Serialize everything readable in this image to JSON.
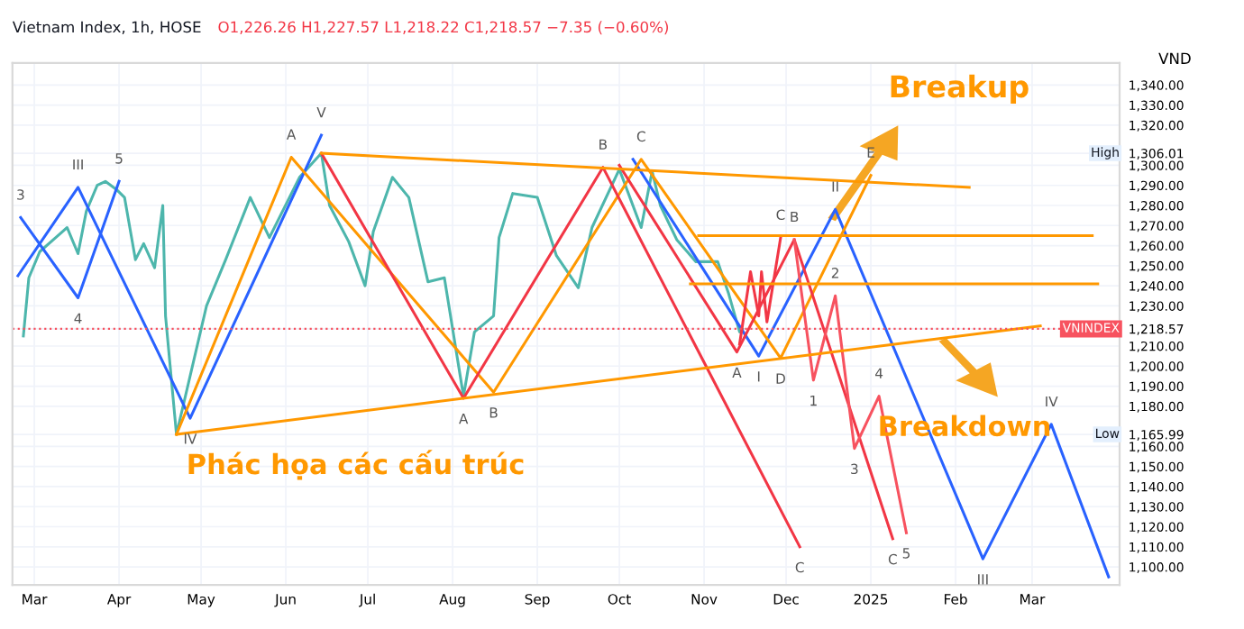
{
  "chart_data": {
    "type": "line",
    "title": "Vietnam Index, 1h, HOSE",
    "subtitle": "O1,226.26 H1,227.57 L1,218.22 C1,218.57 −7.35 (−0.60%)",
    "ylabel": "VND",
    "xlim": [
      "2024-02-22",
      "2025-04-02"
    ],
    "ylim": [
      1091,
      1351
    ],
    "xticks": [
      {
        "value": "2024-03-01",
        "label": "Mar"
      },
      {
        "value": "2024-04-01",
        "label": "Apr"
      },
      {
        "value": "2024-05-01",
        "label": "May"
      },
      {
        "value": "2024-06-01",
        "label": "Jun"
      },
      {
        "value": "2024-07-01",
        "label": "Jul"
      },
      {
        "value": "2024-08-01",
        "label": "Aug"
      },
      {
        "value": "2024-09-01",
        "label": "Sep"
      },
      {
        "value": "2024-10-01",
        "label": "Oct"
      },
      {
        "value": "2024-11-01",
        "label": "Nov"
      },
      {
        "value": "2024-12-01",
        "label": "Dec"
      },
      {
        "value": "2025-01-01",
        "label": "2025"
      },
      {
        "value": "2025-02-01",
        "label": "Feb"
      },
      {
        "value": "2025-03-01",
        "label": "Mar"
      }
    ],
    "yticks": [
      {
        "value": 1100,
        "label": "1,100.00"
      },
      {
        "value": 1110,
        "label": "1,110.00"
      },
      {
        "value": 1120,
        "label": "1,120.00"
      },
      {
        "value": 1130,
        "label": "1,130.00"
      },
      {
        "value": 1140,
        "label": "1,140.00"
      },
      {
        "value": 1150,
        "label": "1,150.00"
      },
      {
        "value": 1160,
        "label": "1,160.00"
      },
      {
        "value": 1165.99,
        "label": "1,165.99"
      },
      {
        "value": 1180,
        "label": "1,180.00"
      },
      {
        "value": 1190,
        "label": "1,190.00"
      },
      {
        "value": 1200,
        "label": "1,200.00"
      },
      {
        "value": 1210,
        "label": "1,210.00"
      },
      {
        "value": 1218.57,
        "label": "1,218.57"
      },
      {
        "value": 1230,
        "label": "1,230.00"
      },
      {
        "value": 1240,
        "label": "1,240.00"
      },
      {
        "value": 1250,
        "label": "1,250.00"
      },
      {
        "value": 1260,
        "label": "1,260.00"
      },
      {
        "value": 1270,
        "label": "1,270.00"
      },
      {
        "value": 1280,
        "label": "1,280.00"
      },
      {
        "value": 1290,
        "label": "1,290.00"
      },
      {
        "value": 1300,
        "label": "1,300.00"
      },
      {
        "value": 1306.01,
        "label": "1,306.01"
      },
      {
        "value": 1320,
        "label": "1,320.00"
      },
      {
        "value": 1330,
        "label": "1,330.00"
      },
      {
        "value": 1340,
        "label": "1,340.00"
      }
    ],
    "grid": true,
    "series": [
      {
        "color": "#4db6ac",
        "x": [
          "2024-02-26",
          "2024-02-28",
          "2024-03-03",
          "2024-03-08",
          "2024-03-13",
          "2024-03-17",
          "2024-03-20",
          "2024-03-24",
          "2024-03-27",
          "2024-03-31",
          "2024-04-03",
          "2024-04-07",
          "2024-04-10",
          "2024-04-14",
          "2024-04-17",
          "2024-04-18",
          "2024-04-22",
          "2024-05-03",
          "2024-05-10",
          "2024-05-19",
          "2024-05-26",
          "2024-06-06",
          "2024-06-14",
          "2024-06-17",
          "2024-06-24",
          "2024-06-30",
          "2024-07-03",
          "2024-07-10",
          "2024-07-16",
          "2024-07-23",
          "2024-07-29",
          "2024-08-05",
          "2024-08-09",
          "2024-08-16",
          "2024-08-18",
          "2024-08-23",
          "2024-09-01",
          "2024-09-08",
          "2024-09-16",
          "2024-09-21",
          "2024-10-01",
          "2024-10-09",
          "2024-10-13",
          "2024-10-16",
          "2024-10-22",
          "2024-10-29",
          "2024-11-06",
          "2024-11-10",
          "2024-11-14",
          "2024-11-15"
        ],
        "values": [
          1215,
          1244,
          1257,
          1263,
          1269,
          1256,
          1277,
          1290,
          1292,
          1288,
          1284,
          1253,
          1261,
          1249,
          1280,
          1225,
          1166,
          1230,
          1253,
          1284,
          1264,
          1294,
          1306,
          1280,
          1262,
          1240,
          1267,
          1294,
          1284,
          1242,
          1244,
          1185,
          1217,
          1225,
          1264,
          1286,
          1284,
          1255,
          1239,
          1269,
          1298,
          1269,
          1297,
          1280,
          1263,
          1252,
          1252,
          1236,
          1217,
          1218.57
        ]
      },
      {
        "color": "#2962ff",
        "x": [
          "2024-02-24",
          "2024-03-17",
          "2024-04-27",
          "2024-06-14"
        ],
        "values": [
          1245,
          1289,
          1174,
          1315
        ]
      },
      {
        "color": "#2962ff",
        "x": [
          "2024-02-25",
          "2024-03-17",
          "2024-04-01"
        ],
        "values": [
          1274,
          1234,
          1292
        ]
      },
      {
        "color": "#2962ff",
        "x": [
          "2024-10-06",
          "2024-11-21",
          "2024-12-19",
          "2025-02-11",
          "2025-03-08",
          "2025-03-29"
        ],
        "values": [
          1303,
          1205,
          1278,
          1104,
          1171,
          1095
        ]
      },
      {
        "color": "#ff9800",
        "x": [
          "2024-04-22",
          "2024-06-03",
          "2024-08-16",
          "2024-10-09",
          "2024-11-29",
          "2025-01-01"
        ],
        "values": [
          1166,
          1304,
          1187,
          1303,
          1204,
          1295
        ]
      },
      {
        "color": "#f23645",
        "x": [
          "2024-06-14",
          "2024-08-05",
          "2024-09-25",
          "2024-12-06"
        ],
        "values": [
          1306,
          1184,
          1299,
          1110
        ]
      },
      {
        "color": "#f23645",
        "x": [
          "2024-10-01",
          "2024-11-13",
          "2024-12-04",
          "2025-01-09"
        ],
        "values": [
          1300,
          1207,
          1263,
          1114
        ]
      },
      {
        "color": "#f23645",
        "x": [
          "2024-11-14",
          "2024-11-18",
          "2024-11-21",
          "2024-11-22",
          "2024-11-24",
          "2024-11-29"
        ],
        "values": [
          1211,
          1247,
          1225,
          1247,
          1222,
          1264
        ]
      },
      {
        "color": "#f7525f",
        "x": [
          "2024-12-04",
          "2024-12-11",
          "2024-12-19",
          "2024-12-26",
          "2025-01-04",
          "2025-01-14"
        ],
        "values": [
          1263,
          1193,
          1235,
          1159,
          1185,
          1117
        ]
      },
      {
        "color": "#ff9800",
        "x": [
          "2024-06-14",
          "2025-02-06"
        ],
        "values": [
          1306,
          1289
        ]
      },
      {
        "color": "#ff9800",
        "x": [
          "2024-04-22",
          "2025-03-04"
        ],
        "values": [
          1166,
          1220
        ]
      },
      {
        "color": "#ff9800",
        "x": [
          "2024-10-30",
          "2025-03-23"
        ],
        "values": [
          1265,
          1265
        ]
      },
      {
        "color": "#ff9800",
        "x": [
          "2024-10-27",
          "2025-03-25"
        ],
        "values": [
          1241,
          1241
        ]
      }
    ],
    "ref_lines": [
      {
        "axis": "y",
        "value": 1218.57,
        "label": "VNINDEX",
        "color": "#f7525f",
        "line_style": "dotted"
      }
    ],
    "annotations": [
      "Breakup",
      "Breakdown",
      "Phác họa các cấu trúc",
      "High",
      "Low",
      {
        "text": "3",
        "x": "2024-02-25",
        "y": 1274
      },
      {
        "text": "4",
        "x": "2024-03-17",
        "y": 1234
      },
      {
        "text": "III",
        "x": "2024-03-17",
        "y": 1289
      },
      {
        "text": "5",
        "x": "2024-04-01",
        "y": 1292
      },
      {
        "text": "IV",
        "x": "2024-04-27",
        "y": 1174
      },
      {
        "text": "V",
        "x": "2024-06-14",
        "y": 1315
      },
      {
        "text": "A",
        "x": "2024-06-03",
        "y": 1304
      },
      {
        "text": "B",
        "x": "2024-08-16",
        "y": 1187
      },
      {
        "text": "A",
        "x": "2024-08-05",
        "y": 1184
      },
      {
        "text": "B",
        "x": "2024-09-25",
        "y": 1299
      },
      {
        "text": "C",
        "x": "2024-10-09",
        "y": 1303
      },
      {
        "text": "D",
        "x": "2024-11-29",
        "y": 1204
      },
      {
        "text": "E",
        "x": "2025-01-01",
        "y": 1295
      },
      {
        "text": "C",
        "x": "2024-12-06",
        "y": 1110
      },
      {
        "text": "C",
        "x": "2025-01-09",
        "y": 1114
      },
      {
        "text": "B",
        "x": "2024-12-04",
        "y": 1263
      },
      {
        "text": "C",
        "x": "2024-11-29",
        "y": 1264
      },
      {
        "text": "A",
        "x": "2024-11-13",
        "y": 1207
      },
      {
        "text": "I",
        "x": "2024-11-21",
        "y": 1205
      },
      {
        "text": "II",
        "x": "2024-12-19",
        "y": 1278
      },
      {
        "text": "III",
        "x": "2025-02-11",
        "y": 1104
      },
      {
        "text": "IV",
        "x": "2025-03-08",
        "y": 1171
      },
      {
        "text": "1",
        "x": "2024-12-11",
        "y": 1193
      },
      {
        "text": "2",
        "x": "2024-12-19",
        "y": 1235
      },
      {
        "text": "3",
        "x": "2024-12-26",
        "y": 1159
      },
      {
        "text": "4",
        "x": "2025-01-04",
        "y": 1185
      },
      {
        "text": "5",
        "x": "2025-01-14",
        "y": 1117
      }
    ]
  }
}
